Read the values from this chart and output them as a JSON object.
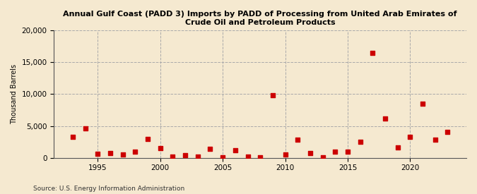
{
  "title_line1": "Annual Gulf Coast (PADD 3) Imports by PADD of Processing from United Arab Emirates of",
  "title_line2": "Crude Oil and Petroleum Products",
  "ylabel": "Thousand Barrels",
  "source": "Source: U.S. Energy Information Administration",
  "background_color": "#f5e9d0",
  "marker_color": "#cc0000",
  "years": [
    1993,
    1994,
    1995,
    1996,
    1997,
    1998,
    1999,
    2000,
    2001,
    2002,
    2003,
    2004,
    2005,
    2006,
    2007,
    2008,
    2009,
    2010,
    2011,
    2012,
    2013,
    2014,
    2015,
    2016,
    2017,
    2018,
    2019,
    2020,
    2021,
    2022,
    2023
  ],
  "values": [
    3300,
    4600,
    650,
    700,
    500,
    1000,
    2950,
    1500,
    200,
    450,
    200,
    1400,
    100,
    1200,
    200,
    100,
    9800,
    550,
    2800,
    700,
    100,
    950,
    1000,
    2500,
    16400,
    6200,
    1600,
    3300,
    8500,
    2900,
    4100
  ],
  "xlim": [
    1991.5,
    2024.5
  ],
  "ylim": [
    0,
    20000
  ],
  "yticks": [
    0,
    5000,
    10000,
    15000,
    20000
  ],
  "xticks": [
    1995,
    2000,
    2005,
    2010,
    2015,
    2020
  ]
}
